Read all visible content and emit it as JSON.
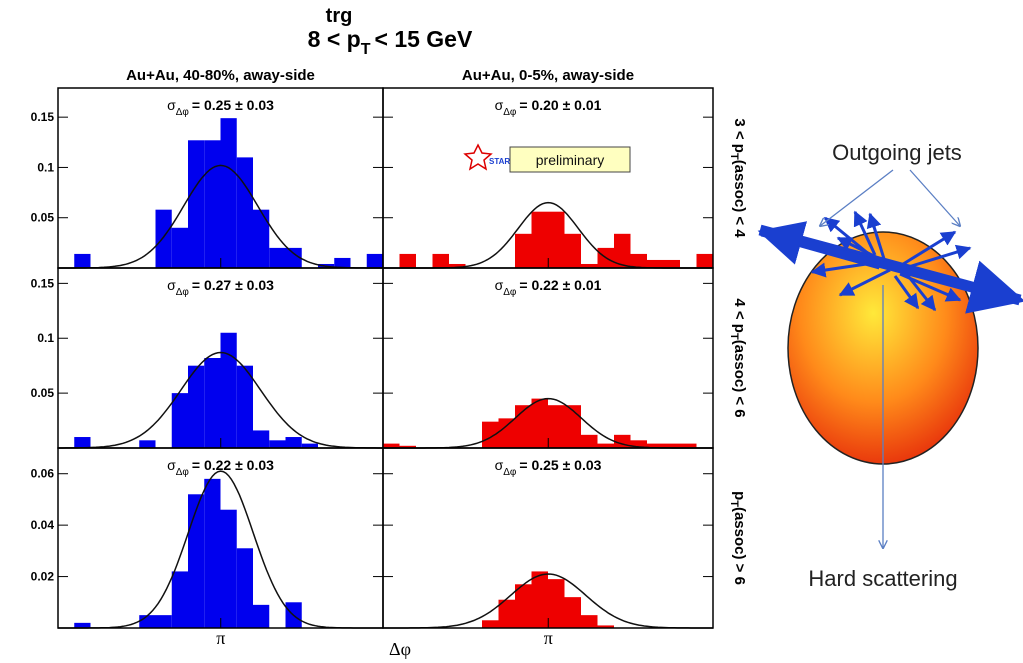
{
  "chart_data": {
    "type": "histogram",
    "title": {
      "before": "8 < p",
      "sub": "T",
      "sup": "trg",
      "after": "< 15 GeV"
    },
    "columns": [
      "Au+Au, 40-80%, away-side",
      "Au+Au, 0-5%, away-side"
    ],
    "colors": [
      "#0000ee",
      "#ee0000"
    ],
    "xlabel": "Δφ",
    "xlim": [
      2.04,
      4.24
    ],
    "xticks": [
      {
        "value": 3.1416,
        "label": "π"
      }
    ],
    "bins": [
      2.04,
      2.15,
      2.26,
      2.37,
      2.48,
      2.59,
      2.7,
      2.81,
      2.92,
      3.03,
      3.14,
      3.25,
      3.36,
      3.47,
      3.58,
      3.69,
      3.8,
      3.91,
      4.02,
      4.13,
      4.24
    ],
    "stamp": {
      "logo": "STAR",
      "text": "preliminary"
    },
    "rows": [
      {
        "label": {
          "before": "3 < p",
          "sub": "T",
          "after": "(assoc) < 4"
        },
        "ylim": [
          0,
          0.179
        ],
        "yticks": [
          0.05,
          0.1,
          0.15
        ],
        "panels": [
          {
            "counts": [
              0,
              0.014,
              0,
              0,
              0,
              0,
              0.058,
              0.04,
              0.127,
              0.127,
              0.149,
              0.11,
              0.058,
              0.02,
              0.02,
              0,
              0.004,
              0.01,
              0,
              0.014
            ],
            "fit": {
              "amplitude": 0.102,
              "mean": 3.1416,
              "sigma": 0.25
            },
            "annotation": {
              "symbol": "σ",
              "sub": "Δφ",
              "text": "= 0.25 ± 0.03"
            }
          },
          {
            "counts": [
              0,
              0.014,
              0,
              0.014,
              0.004,
              0,
              0,
              0,
              0.034,
              0.056,
              0.056,
              0.034,
              0.004,
              0.02,
              0.034,
              0.014,
              0.008,
              0.008,
              0,
              0.014
            ],
            "fit": {
              "amplitude": 0.065,
              "mean": 3.1416,
              "sigma": 0.2
            },
            "annotation": {
              "symbol": "σ",
              "sub": "Δφ",
              "text": "= 0.20 ± 0.01"
            }
          }
        ]
      },
      {
        "label": {
          "before": "4 < p",
          "sub": "T",
          "after": "(assoc) < 6"
        },
        "ylim": [
          0,
          0.164
        ],
        "yticks": [
          0.05,
          0.1,
          0.15
        ],
        "panels": [
          {
            "counts": [
              0,
              0.01,
              0,
              0,
              0,
              0.007,
              0,
              0.05,
              0.075,
              0.082,
              0.105,
              0.075,
              0.016,
              0.007,
              0.01,
              0.004,
              0,
              0,
              0,
              0
            ],
            "fit": {
              "amplitude": 0.087,
              "mean": 3.1416,
              "sigma": 0.27
            },
            "annotation": {
              "symbol": "σ",
              "sub": "Δφ",
              "text": "= 0.27 ± 0.03"
            }
          },
          {
            "counts": [
              0.004,
              0.002,
              0,
              0,
              0,
              0,
              0.024,
              0.027,
              0.039,
              0.045,
              0.039,
              0.039,
              0.012,
              0.004,
              0.012,
              0.007,
              0.004,
              0.004,
              0.004,
              0
            ],
            "fit": {
              "amplitude": 0.045,
              "mean": 3.1416,
              "sigma": 0.22
            },
            "annotation": {
              "symbol": "σ",
              "sub": "Δφ",
              "text": "= 0.22 ± 0.01"
            }
          }
        ]
      },
      {
        "label": {
          "before": "p",
          "sub": "T",
          "after": "(assoc) > 6"
        },
        "ylim": [
          0,
          0.07
        ],
        "yticks": [
          0.02,
          0.04,
          0.06
        ],
        "panels": [
          {
            "counts": [
              0,
              0.002,
              0,
              0,
              0,
              0.005,
              0.005,
              0.022,
              0.052,
              0.058,
              0.046,
              0.031,
              0.009,
              0,
              0.01,
              0,
              0,
              0,
              0,
              0
            ],
            "fit": {
              "amplitude": 0.061,
              "mean": 3.1416,
              "sigma": 0.22
            },
            "annotation": {
              "symbol": "σ",
              "sub": "Δφ",
              "text": "= 0.22 ± 0.03"
            }
          },
          {
            "counts": [
              0,
              0,
              0,
              0,
              0,
              0,
              0.003,
              0.011,
              0.017,
              0.022,
              0.019,
              0.012,
              0.005,
              0.001,
              0,
              0,
              0,
              0,
              0,
              0
            ],
            "fit": {
              "amplitude": 0.021,
              "mean": 3.1416,
              "sigma": 0.25
            },
            "annotation": {
              "symbol": "σ",
              "sub": "Δφ",
              "text": "= 0.25 ± 0.03"
            }
          }
        ]
      }
    ]
  },
  "diagram": {
    "jets_label": "Outgoing jets",
    "scatter_label": "Hard scattering"
  }
}
